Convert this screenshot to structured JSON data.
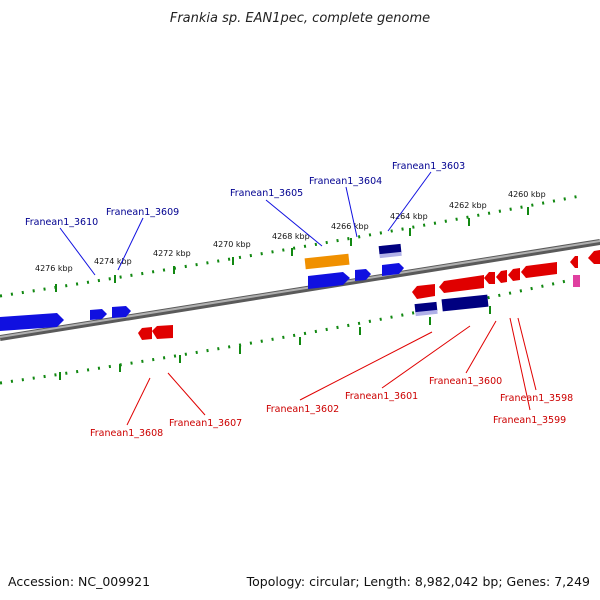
{
  "title": "Frankia sp. EAN1pec, complete genome",
  "accession": "Accession: NC_009921",
  "topology": "Topology: circular; Length: 8,982,042 bp; Genes: 7,249",
  "colors": {
    "forward": "#1010e0",
    "reverse": "#e00000",
    "rna": "#f09000",
    "dark_blue": "#000080",
    "pseudo": "#e040a0",
    "label_blue": "#000090",
    "label_red": "#cc0000",
    "tick": "#118811",
    "backbone": "#808080"
  },
  "kbp_labels": [
    "4276 kbp",
    "4274 kbp",
    "4272 kbp",
    "4270 kbp",
    "4268 kbp",
    "4266 kbp",
    "4264 kbp",
    "4262 kbp",
    "4260 kbp"
  ],
  "labels_top": [
    "Franean1_3610",
    "Franean1_3609",
    "Franean1_3605",
    "Franean1_3604",
    "Franean1_3603"
  ],
  "labels_bottom": [
    "Franean1_3608",
    "Franean1_3607",
    "Franean1_3602",
    "Franean1_3601",
    "Franean1_3600",
    "Franean1_3598",
    "Franean1_3599"
  ]
}
